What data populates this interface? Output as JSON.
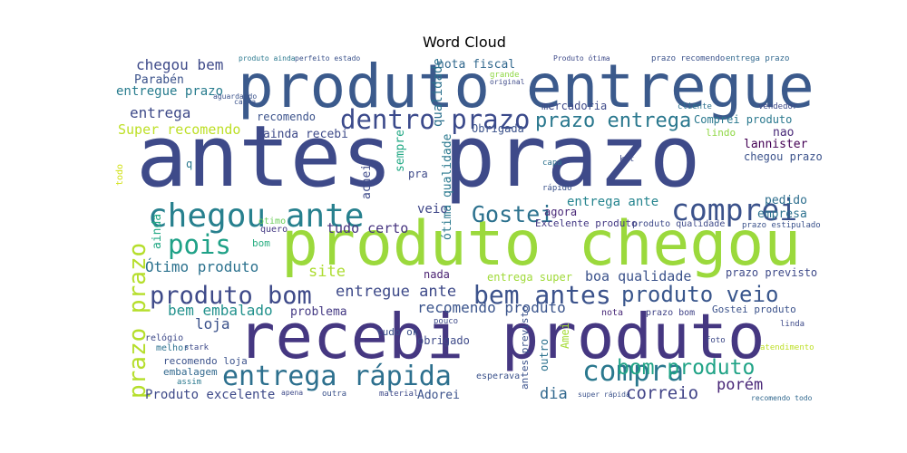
{
  "title": "Word Cloud",
  "words": [
    "antes prazo",
    "produto entregue",
    "produto chegou",
    "recebi produto",
    "chegou ante",
    "dentro prazo",
    "prazo entrega",
    "comprei",
    "Gostei",
    "pois",
    "produto bom",
    "bem antes",
    "produto veio",
    "entrega rápida",
    "compra",
    "prazo prazo",
    "bom produto",
    "porém",
    "correio",
    "dia",
    "Adorei",
    "Produto excelente",
    "embalagem",
    "recomendo loja",
    "loja",
    "bem embalado",
    "problema",
    "recomendo produto",
    "entregue ante",
    "Ótimo produto",
    "site",
    "nada",
    "entrega super",
    "boa qualidade",
    "prazo previsto",
    "tudo certo",
    "veio",
    "entrega ante",
    "Excelente produto",
    "empresa",
    "pedido",
    "chegou prazo",
    "lannister",
    "nao",
    "Comprei produto",
    "lindo",
    "Obrigada",
    "mercadoria",
    "nota fiscal",
    "recomendo",
    "entrega",
    "Super recomendo",
    "ainda recebi",
    "entregue prazo",
    "Parabén",
    "chegou bem",
    "q",
    "pra",
    "agora",
    "obrigado",
    "tudo ok",
    "nota",
    "prazo bom",
    "Gostei produto",
    "quero",
    "otimo",
    "bom",
    "produto qualidade",
    "prazo estipulado",
    "relógio",
    "melhor",
    "esperava",
    "super rápida",
    "recomendo todo",
    "qualidade",
    "sempre",
    "achei",
    "ótima qualidade",
    "ainda",
    "Amei",
    "outro",
    "antes previsto",
    "todo",
    "produto ainda",
    "perfeito estado",
    "Produto ótima",
    "prazo recomendo",
    "entrega prazo",
    "aguardando",
    "pouco",
    "stark",
    "assim",
    "material",
    "outra",
    "apena",
    "kit",
    "capa",
    "rápido",
    "linda",
    "foto",
    "atendimento",
    "vendedor",
    "cliente",
    "caixa",
    "grande",
    "original"
  ]
}
